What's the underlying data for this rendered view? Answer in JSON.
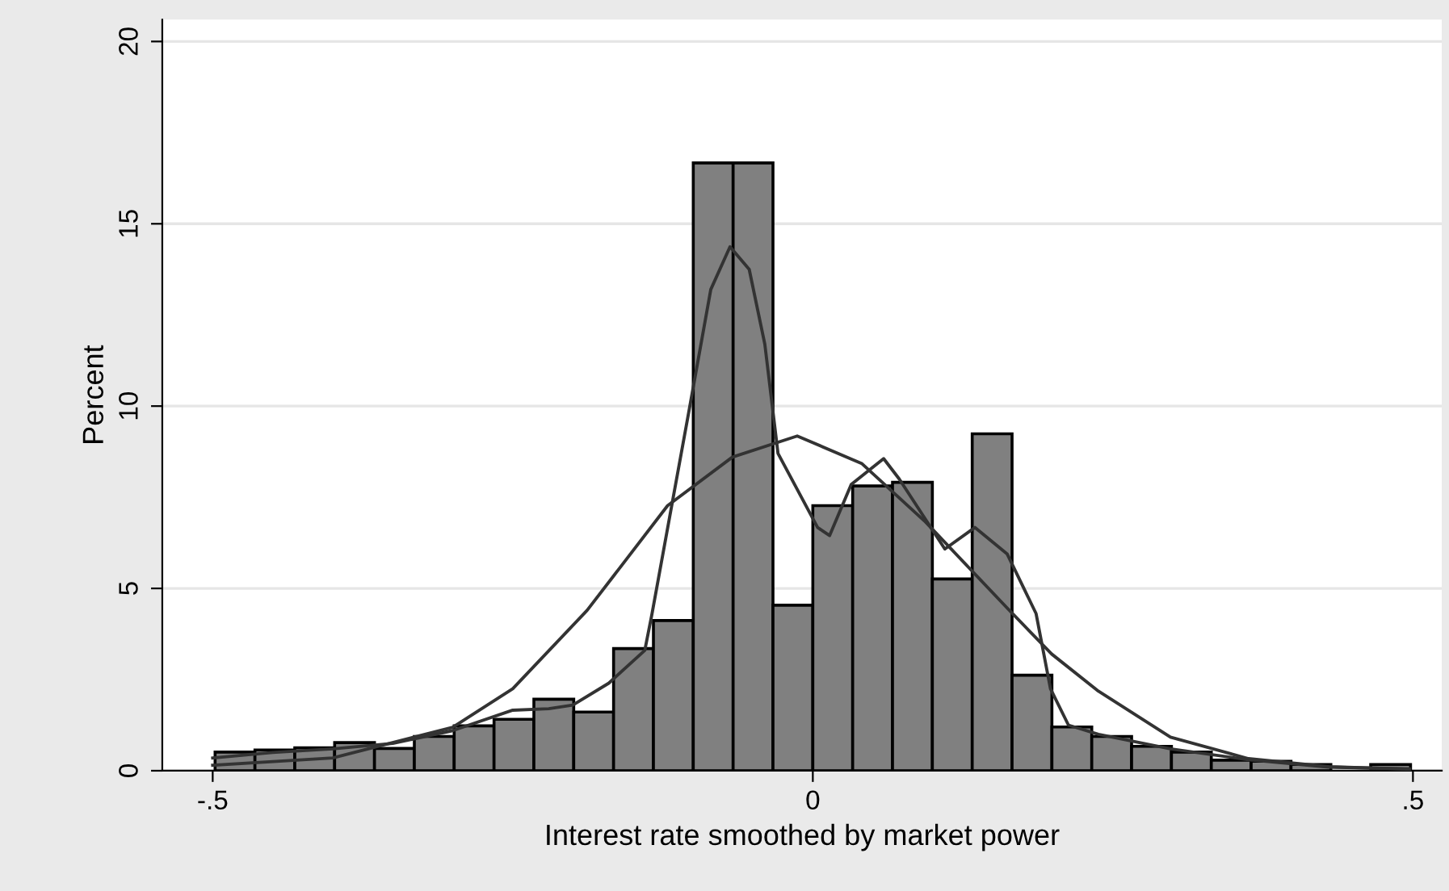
{
  "chart_data": {
    "type": "histogram",
    "xlabel": "Interest rate smoothed by market power",
    "ylabel": "Percent",
    "bins": [
      -0.498,
      -0.4648,
      -0.4316,
      -0.3984,
      -0.3652,
      -0.332,
      -0.2988,
      -0.2656,
      -0.2324,
      -0.1992,
      -0.166,
      -0.1328,
      -0.0996,
      -0.0664,
      -0.0332,
      0.0,
      0.0332,
      0.0664,
      0.0996,
      0.1328,
      0.166,
      0.1992,
      0.2324,
      0.2656,
      0.2988,
      0.332,
      0.3652,
      0.3984,
      0.4316,
      0.4648,
      0.498
    ],
    "values": [
      0.51,
      0.57,
      0.63,
      0.77,
      0.61,
      0.94,
      1.23,
      1.41,
      1.96,
      1.61,
      3.35,
      4.12,
      16.67,
      16.67,
      4.54,
      7.27,
      7.81,
      7.91,
      5.26,
      9.24,
      2.62,
      1.2,
      0.94,
      0.67,
      0.51,
      0.29,
      0.26,
      0.17,
      null,
      0.17
    ],
    "color": "#808080",
    "series": [
      {
        "type": "line",
        "color": "#333333",
        "x": [
          -0.5,
          -0.45,
          -0.4,
          -0.35,
          -0.3,
          -0.25,
          -0.22,
          -0.2,
          -0.17,
          -0.14,
          -0.134,
          -0.103,
          -0.085,
          -0.069,
          -0.053,
          -0.04,
          -0.029,
          0.004,
          0.014,
          0.032,
          0.059,
          0.072,
          0.11,
          0.135,
          0.162,
          0.186,
          0.198,
          0.213,
          0.238,
          0.298,
          0.363,
          0.43,
          0.497
        ],
        "values": [
          0.35,
          0.5,
          0.6,
          0.75,
          1.1,
          1.66,
          1.7,
          1.8,
          2.4,
          3.3,
          4.3,
          9.9,
          13.2,
          14.37,
          13.75,
          11.7,
          8.7,
          6.67,
          6.45,
          7.85,
          8.56,
          8.0,
          6.08,
          6.67,
          5.94,
          4.31,
          2.25,
          1.25,
          1.0,
          0.6,
          0.3,
          0.1,
          0.05
        ]
      },
      {
        "type": "line",
        "color": "#333333",
        "x": [
          -0.5,
          -0.4,
          -0.3,
          -0.25,
          -0.188,
          -0.121,
          -0.067,
          -0.013,
          0.041,
          0.094,
          0.162,
          0.199,
          0.238,
          0.298,
          0.363,
          0.43,
          0.497
        ],
        "values": [
          0.15,
          0.35,
          1.19,
          2.25,
          4.4,
          7.27,
          8.6,
          9.18,
          8.42,
          6.82,
          4.46,
          3.2,
          2.18,
          0.92,
          0.33,
          0.11,
          0.04
        ]
      }
    ],
    "xlim": [
      -0.542,
      0.524
    ],
    "ylim": [
      0,
      20.6
    ],
    "xticks": [
      {
        "value": -0.5,
        "label": "-.5"
      },
      0,
      {
        "value": 0.5,
        "label": ".5"
      }
    ],
    "yticks": [
      0,
      5,
      10,
      15,
      20
    ],
    "grid": "y",
    "legend": false
  }
}
